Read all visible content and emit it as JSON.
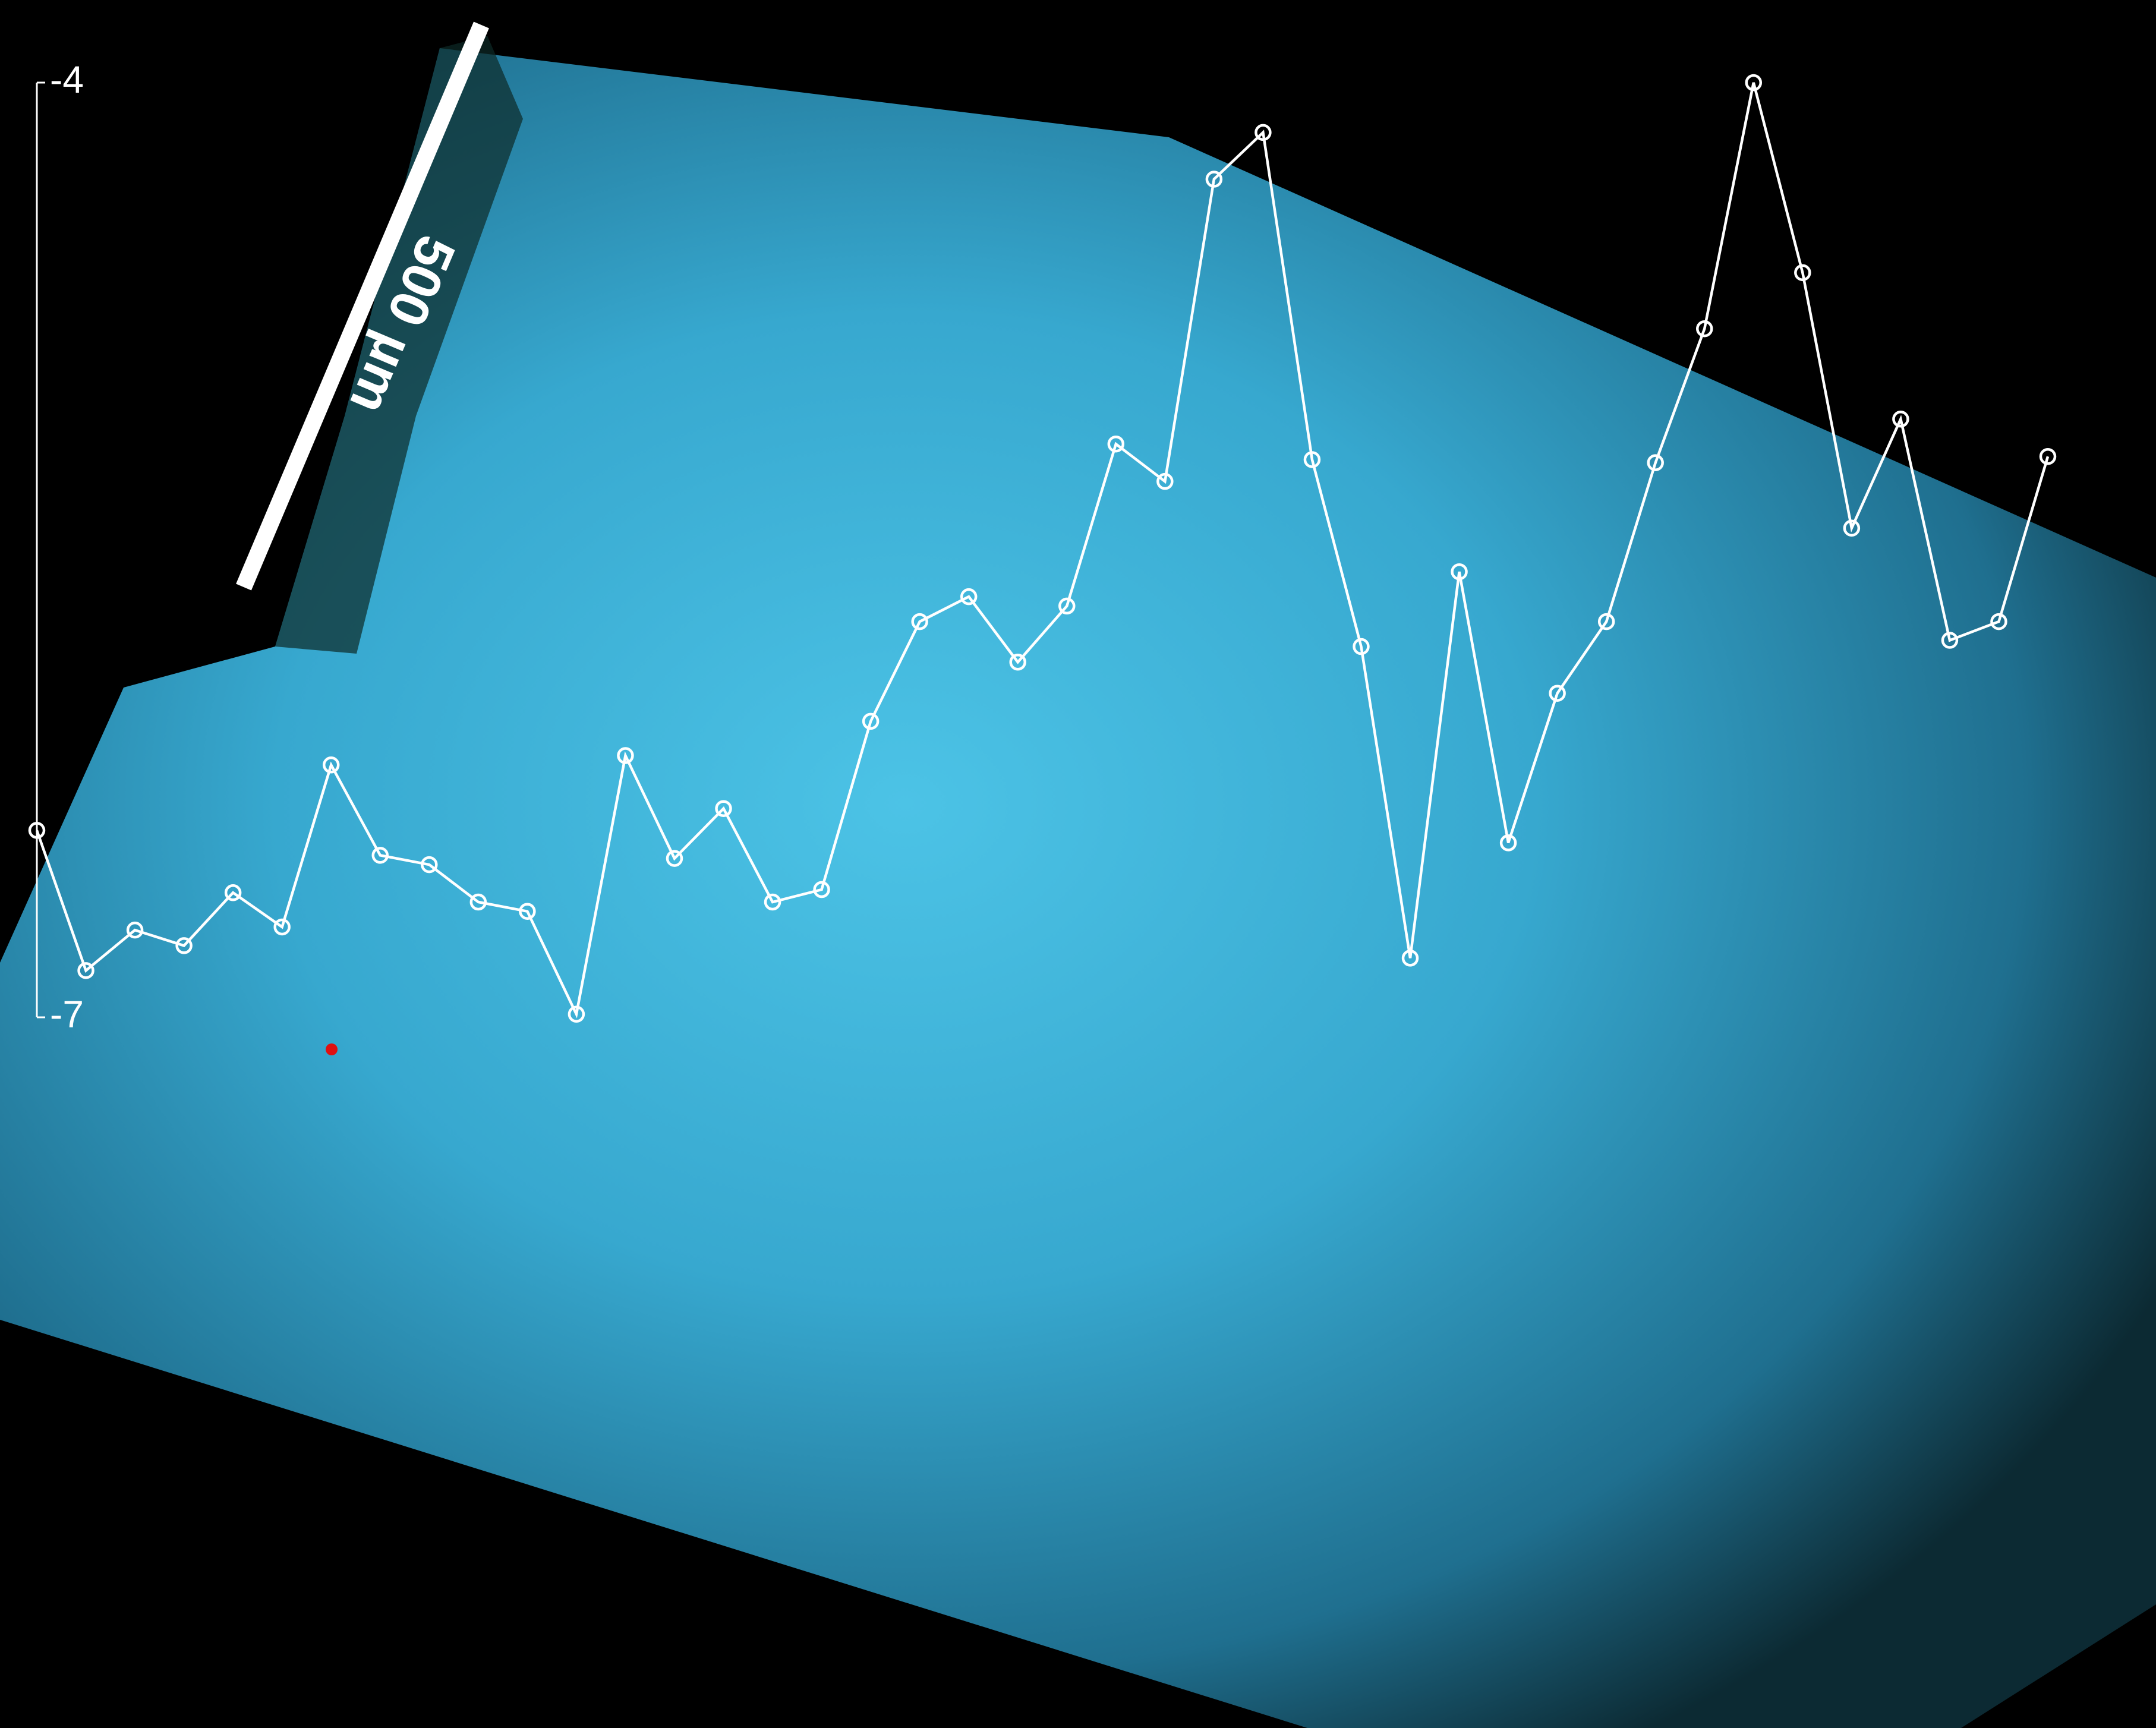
{
  "chart_data": {
    "type": "line",
    "scale_bar_label": "500 µm",
    "color": "#ffffff",
    "ylim": [
      -7,
      -4
    ],
    "yticks": [
      -4,
      -7
    ],
    "values": [
      -6.4,
      -6.85,
      -6.72,
      -6.77,
      -6.6,
      -6.71,
      -6.19,
      -6.48,
      -6.51,
      -6.63,
      -6.66,
      -6.99,
      -6.16,
      -6.49,
      -6.33,
      -6.63,
      -6.59,
      -6.05,
      -5.73,
      -5.65,
      -5.86,
      -5.68,
      -5.16,
      -5.28,
      -4.31,
      -4.16,
      -5.21,
      -5.81,
      -6.81,
      -5.57,
      -6.44,
      -5.96,
      -5.73,
      -5.22,
      -4.79,
      -4.0,
      -4.61,
      -5.43,
      -5.08,
      -5.79,
      -5.73,
      -5.2
    ]
  }
}
